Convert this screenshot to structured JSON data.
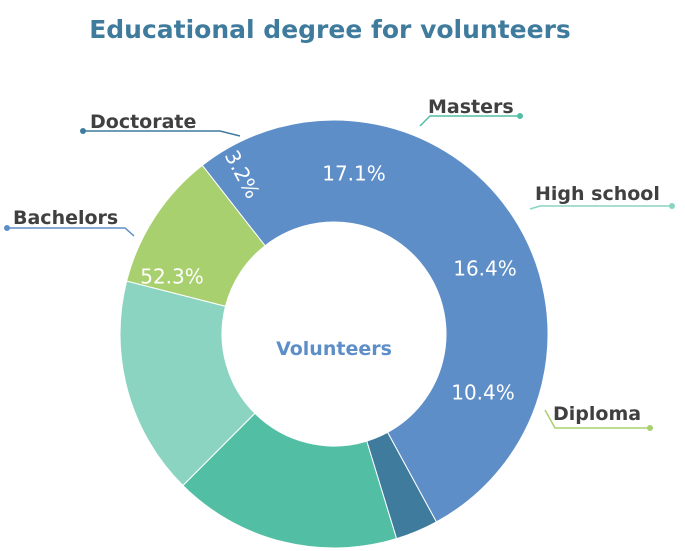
{
  "chart_data": {
    "type": "pie",
    "title": "Educational degree for volunteers",
    "center_label": "Volunteers",
    "slices": [
      {
        "category": "Bachelors",
        "value": 52.3,
        "label": "52.3%",
        "color": "#5e8ec8"
      },
      {
        "category": "Doctorate",
        "value": 3.2,
        "label": "3.2%",
        "color": "#3f7b9d"
      },
      {
        "category": "Masters",
        "value": 17.1,
        "label": "17.1%",
        "color": "#52bfa5"
      },
      {
        "category": "High school",
        "value": 16.4,
        "label": "16.4%",
        "color": "#8bd4c2"
      },
      {
        "category": "Diploma",
        "value": 10.4,
        "label": "10.4%",
        "color": "#a8d06f"
      }
    ],
    "legend": "callouts"
  },
  "colors": {
    "title": "#3f7b9d",
    "center_label": "#5e8ec8",
    "background": "#ffffff"
  }
}
